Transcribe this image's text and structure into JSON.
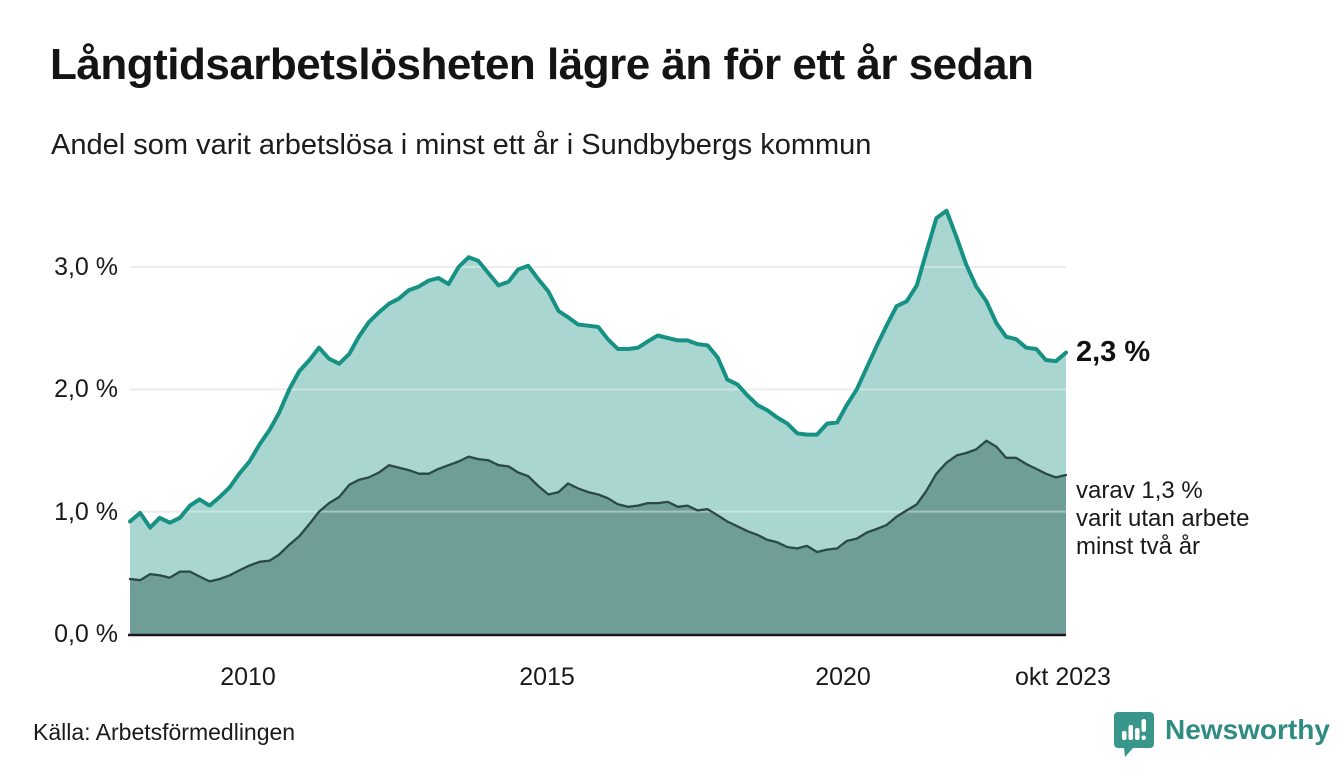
{
  "header": {
    "title": "Långtidsarbetslösheten lägre än för ett år sedan",
    "subtitle": "Andel som varit arbetslösa i minst ett år i Sundbybergs kommun"
  },
  "chart_data": {
    "type": "area",
    "title": "Långtidsarbetslösheten lägre än för ett år sedan",
    "subtitle": "Andel som varit arbetslösa i minst ett år i Sundbybergs kommun",
    "unit": "%",
    "grid": "horizontal-only",
    "legend_position": "end-of-line-labels",
    "x_axis": {
      "start": 2008.0,
      "end": 2023.75,
      "ticks": [
        {
          "label": "2010",
          "year": 2010
        },
        {
          "label": "2015",
          "year": 2015
        },
        {
          "label": "2020",
          "year": 2020
        },
        {
          "label": "okt 2023",
          "year": 2023.75
        }
      ]
    },
    "y_axis": {
      "min": 0,
      "max": 3.63,
      "ticks": [
        {
          "label": "3,0 %",
          "value": 3.0
        },
        {
          "label": "2,0 %",
          "value": 2.0
        },
        {
          "label": "1,0 %",
          "value": 1.0
        },
        {
          "label": "0,0 %",
          "value": 0.0
        }
      ]
    },
    "x": [
      2008.0,
      2008.17,
      2008.34,
      2008.5,
      2008.67,
      2008.84,
      2009.01,
      2009.17,
      2009.34,
      2009.51,
      2009.68,
      2009.84,
      2010.01,
      2010.18,
      2010.35,
      2010.51,
      2010.68,
      2010.85,
      2011.02,
      2011.18,
      2011.35,
      2011.52,
      2011.69,
      2011.85,
      2012.02,
      2012.19,
      2012.36,
      2012.52,
      2012.69,
      2012.86,
      2013.03,
      2013.19,
      2013.36,
      2013.53,
      2013.7,
      2013.86,
      2014.03,
      2014.2,
      2014.37,
      2014.53,
      2014.7,
      2014.87,
      2015.04,
      2015.21,
      2015.37,
      2015.54,
      2015.71,
      2015.88,
      2016.04,
      2016.21,
      2016.38,
      2016.55,
      2016.71,
      2016.88,
      2017.05,
      2017.22,
      2017.38,
      2017.55,
      2017.72,
      2017.89,
      2018.05,
      2018.22,
      2018.39,
      2018.56,
      2018.72,
      2018.89,
      2019.06,
      2019.23,
      2019.39,
      2019.56,
      2019.73,
      2019.9,
      2020.06,
      2020.23,
      2020.4,
      2020.57,
      2020.73,
      2020.9,
      2021.07,
      2021.24,
      2021.4,
      2021.57,
      2021.74,
      2021.91,
      2022.07,
      2022.24,
      2022.41,
      2022.58,
      2022.74,
      2022.91,
      2023.08,
      2023.25,
      2023.41,
      2023.58,
      2023.75
    ],
    "series": [
      {
        "name": "Andel som varit arbetslösa minst ett år",
        "stroke": "#169183",
        "fill": "#a9d6d0",
        "stroke_width": 4,
        "latest_value": 2.3,
        "values": [
          0.92,
          0.99,
          0.87,
          0.95,
          0.91,
          0.95,
          1.05,
          1.1,
          1.05,
          1.12,
          1.2,
          1.31,
          1.41,
          1.55,
          1.67,
          1.81,
          2.0,
          2.15,
          2.24,
          2.34,
          2.25,
          2.21,
          2.29,
          2.43,
          2.55,
          2.63,
          2.7,
          2.74,
          2.81,
          2.84,
          2.89,
          2.91,
          2.86,
          3.0,
          3.08,
          3.05,
          2.95,
          2.85,
          2.88,
          2.98,
          3.01,
          2.9,
          2.8,
          2.64,
          2.59,
          2.53,
          2.52,
          2.51,
          2.41,
          2.33,
          2.33,
          2.34,
          2.39,
          2.44,
          2.42,
          2.4,
          2.4,
          2.37,
          2.36,
          2.26,
          2.08,
          2.04,
          1.95,
          1.87,
          1.83,
          1.77,
          1.72,
          1.64,
          1.63,
          1.63,
          1.72,
          1.73,
          1.87,
          2.0,
          2.18,
          2.36,
          2.52,
          2.68,
          2.72,
          2.85,
          3.12,
          3.4,
          3.46,
          3.24,
          3.02,
          2.84,
          2.72,
          2.54,
          2.43,
          2.41,
          2.34,
          2.33,
          2.24,
          2.23,
          2.3
        ]
      },
      {
        "name": "varav arbetslösa minst två år",
        "stroke": "#2b4945",
        "fill": "#6f9e99",
        "stroke_width": 2.3,
        "latest_value": 1.3,
        "values": [
          0.45,
          0.44,
          0.49,
          0.48,
          0.46,
          0.51,
          0.51,
          0.47,
          0.43,
          0.45,
          0.48,
          0.52,
          0.56,
          0.59,
          0.6,
          0.65,
          0.73,
          0.8,
          0.9,
          1.0,
          1.07,
          1.12,
          1.22,
          1.26,
          1.28,
          1.32,
          1.38,
          1.36,
          1.34,
          1.31,
          1.31,
          1.35,
          1.38,
          1.41,
          1.45,
          1.43,
          1.42,
          1.38,
          1.37,
          1.32,
          1.29,
          1.21,
          1.14,
          1.16,
          1.23,
          1.19,
          1.16,
          1.14,
          1.11,
          1.06,
          1.04,
          1.05,
          1.07,
          1.07,
          1.08,
          1.04,
          1.05,
          1.01,
          1.02,
          0.97,
          0.92,
          0.88,
          0.84,
          0.81,
          0.77,
          0.75,
          0.71,
          0.7,
          0.72,
          0.67,
          0.69,
          0.7,
          0.76,
          0.78,
          0.83,
          0.86,
          0.89,
          0.96,
          1.01,
          1.06,
          1.17,
          1.31,
          1.4,
          1.46,
          1.48,
          1.51,
          1.58,
          1.53,
          1.44,
          1.44,
          1.39,
          1.35,
          1.31,
          1.28,
          1.3
        ]
      }
    ],
    "annotations": {
      "latest_total": "2,3 %",
      "latest_two_years_lines": [
        "varav 1,3 %",
        "varit utan arbete",
        "minst två år"
      ]
    }
  },
  "footer": {
    "source": "Källa: Arbetsförmedlingen",
    "logo_text": "Newsworthy"
  },
  "colors": {
    "line_total": "#169183",
    "fill_total": "#a9d6d0",
    "line_two_years": "#2b4945",
    "fill_two_years": "#6f9e99",
    "gridline": "#e3e3e3",
    "baseline": "#1b1b1b",
    "logo": "#2f8c82"
  }
}
